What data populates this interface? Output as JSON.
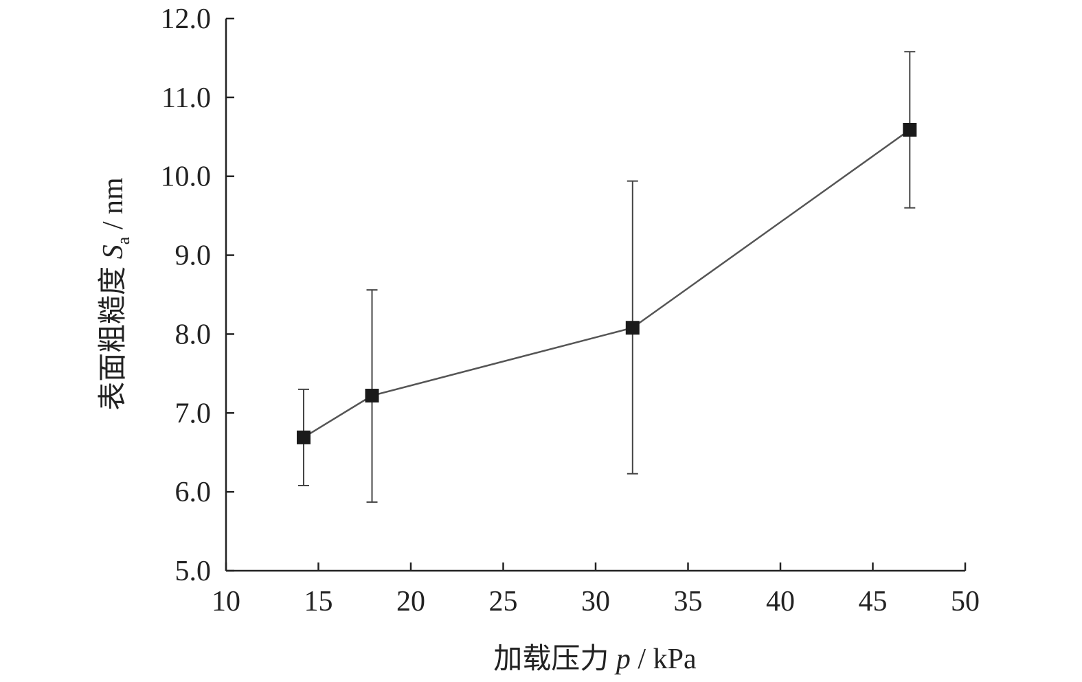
{
  "chart_data": {
    "type": "line",
    "title": "",
    "xlabel_prefix": "加载压力 ",
    "xlabel_var": "p",
    "xlabel_unit": " / kPa",
    "ylabel_prefix": "表面粗糙度 ",
    "ylabel_var": "S",
    "ylabel_sub": "a",
    "ylabel_unit": " / nm",
    "xlim": [
      10,
      50
    ],
    "ylim": [
      5.0,
      12.0
    ],
    "xticks": [
      "10",
      "15",
      "20",
      "25",
      "30",
      "35",
      "40",
      "45",
      "50"
    ],
    "yticks": [
      "5.0",
      "6.0",
      "7.0",
      "8.0",
      "9.0",
      "10.0",
      "11.0",
      "12.0"
    ],
    "grid": false,
    "series": [
      {
        "marker": "square",
        "color": "#1a1a1a",
        "points": [
          {
            "x": 14.2,
            "y": 6.69,
            "err_low": 6.08,
            "err_high": 7.3
          },
          {
            "x": 17.9,
            "y": 7.22,
            "err_low": 5.87,
            "err_high": 8.56
          },
          {
            "x": 32.0,
            "y": 8.08,
            "err_low": 6.23,
            "err_high": 9.94
          },
          {
            "x": 47.0,
            "y": 10.59,
            "err_low": 9.6,
            "err_high": 11.58
          }
        ]
      }
    ]
  }
}
